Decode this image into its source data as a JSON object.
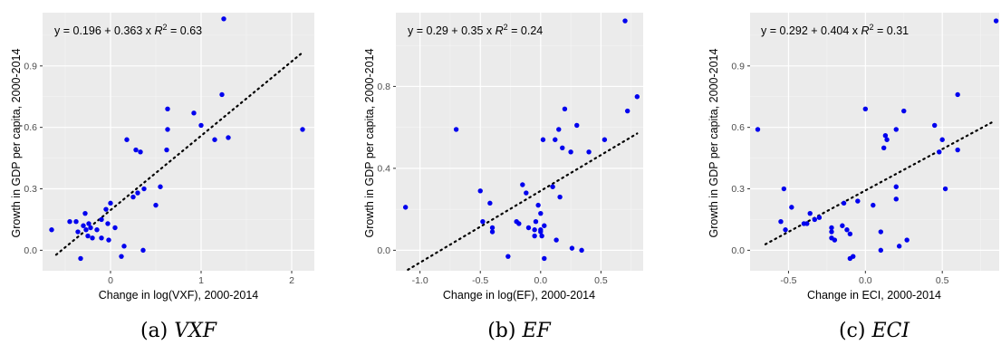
{
  "chart_data": [
    {
      "type": "scatter",
      "caption_label": "(a)",
      "caption_name": "VXF",
      "equation_pre": "y = 0.196 + 0.363 x",
      "equation_r2": "R",
      "equation_r2_exp": "2",
      "equation_r2_val": " = 0.63",
      "xlabel": "Change in log(VXF), 2000-2014",
      "ylabel": "Growth in GDP per capita, 2000-2014",
      "xlim": [
        -0.75,
        2.25
      ],
      "ylim": [
        -0.1,
        1.16
      ],
      "xticks": [
        0,
        1,
        2
      ],
      "xtick_labels": [
        "0",
        "1",
        "2"
      ],
      "yticks": [
        0.0,
        0.3,
        0.6,
        0.9
      ],
      "ytick_labels": [
        "0.0",
        "0.3",
        "0.6",
        "0.9"
      ],
      "fit": {
        "intercept": 0.196,
        "slope": 0.363,
        "x_range": [
          -0.6,
          2.1
        ]
      },
      "point_color": "#0000ee",
      "grid": true,
      "points": [
        [
          -0.65,
          0.1
        ],
        [
          -0.45,
          0.14
        ],
        [
          -0.38,
          0.14
        ],
        [
          -0.36,
          0.09
        ],
        [
          -0.33,
          -0.04
        ],
        [
          -0.3,
          0.12
        ],
        [
          -0.28,
          0.18
        ],
        [
          -0.27,
          0.1
        ],
        [
          -0.25,
          0.07
        ],
        [
          -0.24,
          0.13
        ],
        [
          -0.22,
          0.11
        ],
        [
          -0.2,
          0.06
        ],
        [
          -0.15,
          0.1
        ],
        [
          -0.1,
          0.15
        ],
        [
          -0.1,
          0.06
        ],
        [
          -0.05,
          0.2
        ],
        [
          -0.03,
          0.13
        ],
        [
          -0.02,
          0.05
        ],
        [
          0.0,
          0.23
        ],
        [
          0.05,
          0.11
        ],
        [
          0.12,
          -0.03
        ],
        [
          0.15,
          0.02
        ],
        [
          0.18,
          0.54
        ],
        [
          0.25,
          0.26
        ],
        [
          0.28,
          0.49
        ],
        [
          0.3,
          0.28
        ],
        [
          0.33,
          0.48
        ],
        [
          0.36,
          0.0
        ],
        [
          0.37,
          0.3
        ],
        [
          0.5,
          0.22
        ],
        [
          0.55,
          0.31
        ],
        [
          0.62,
          0.49
        ],
        [
          0.63,
          0.59
        ],
        [
          0.63,
          0.69
        ],
        [
          0.92,
          0.67
        ],
        [
          1.0,
          0.61
        ],
        [
          1.15,
          0.54
        ],
        [
          1.23,
          0.76
        ],
        [
          1.25,
          1.13
        ],
        [
          1.3,
          0.55
        ],
        [
          2.12,
          0.59
        ]
      ]
    },
    {
      "type": "scatter",
      "caption_label": "(b)",
      "caption_name": "EF",
      "equation_pre": "y = 0.29 + 0.35 x",
      "equation_r2": "R",
      "equation_r2_exp": "2",
      "equation_r2_val": " = 0.24",
      "xlabel": "Change in log(EF), 2000-2014",
      "ylabel": "Growth in GDP per capita, 2000-2014",
      "xlim": [
        -1.2,
        0.85
      ],
      "ylim": [
        -0.1,
        1.16
      ],
      "xticks": [
        -1.0,
        -0.5,
        0.0,
        0.5
      ],
      "xtick_labels": [
        "-1.0",
        "-0.5",
        "0.0",
        "0.5"
      ],
      "yticks": [
        0.0,
        0.4,
        0.8
      ],
      "ytick_labels": [
        "0.0",
        "0.4",
        "0.8"
      ],
      "fit": {
        "intercept": 0.29,
        "slope": 0.35,
        "x_range": [
          -1.1,
          0.8
        ]
      },
      "point_color": "#0000ee",
      "grid": true,
      "points": [
        [
          -1.12,
          0.21
        ],
        [
          -0.7,
          0.59
        ],
        [
          -0.5,
          0.29
        ],
        [
          -0.48,
          0.14
        ],
        [
          -0.42,
          0.23
        ],
        [
          -0.4,
          0.11
        ],
        [
          -0.4,
          0.09
        ],
        [
          -0.27,
          -0.03
        ],
        [
          -0.2,
          0.14
        ],
        [
          -0.18,
          0.13
        ],
        [
          -0.15,
          0.32
        ],
        [
          -0.12,
          0.28
        ],
        [
          -0.1,
          0.11
        ],
        [
          -0.05,
          0.1
        ],
        [
          -0.05,
          0.07
        ],
        [
          -0.04,
          0.14
        ],
        [
          -0.02,
          0.22
        ],
        [
          0.0,
          0.09
        ],
        [
          0.0,
          0.1
        ],
        [
          0.0,
          0.18
        ],
        [
          0.01,
          0.07
        ],
        [
          0.02,
          0.54
        ],
        [
          0.03,
          0.12
        ],
        [
          0.03,
          -0.04
        ],
        [
          0.1,
          0.31
        ],
        [
          0.12,
          0.54
        ],
        [
          0.13,
          0.05
        ],
        [
          0.15,
          0.59
        ],
        [
          0.16,
          0.26
        ],
        [
          0.18,
          0.5
        ],
        [
          0.2,
          0.69
        ],
        [
          0.25,
          0.48
        ],
        [
          0.26,
          0.01
        ],
        [
          0.3,
          0.61
        ],
        [
          0.34,
          0.0
        ],
        [
          0.4,
          0.48
        ],
        [
          0.53,
          0.54
        ],
        [
          0.7,
          1.12
        ],
        [
          0.72,
          0.68
        ],
        [
          0.8,
          0.75
        ]
      ]
    },
    {
      "type": "scatter",
      "caption_label": "(c)",
      "caption_name": "ECI",
      "equation_pre": "y = 0.292 + 0.404 x",
      "equation_r2": "R",
      "equation_r2_exp": "2",
      "equation_r2_val": " = 0.31",
      "xlabel": "Change in ECI, 2000-2014",
      "ylabel": "Growth in GDP per capita, 2000-2014",
      "xlim": [
        -0.75,
        0.87
      ],
      "ylim": [
        -0.1,
        1.16
      ],
      "xticks": [
        -0.5,
        0.0,
        0.5
      ],
      "xtick_labels": [
        "-0.5",
        "0.0",
        "0.5"
      ],
      "yticks": [
        0.0,
        0.3,
        0.6,
        0.9
      ],
      "ytick_labels": [
        "0.0",
        "0.3",
        "0.6",
        "0.9"
      ],
      "fit": {
        "intercept": 0.292,
        "slope": 0.404,
        "x_range": [
          -0.65,
          0.82
        ]
      },
      "point_color": "#0000ee",
      "grid": true,
      "points": [
        [
          -0.7,
          0.59
        ],
        [
          -0.55,
          0.14
        ],
        [
          -0.53,
          0.3
        ],
        [
          -0.52,
          0.1
        ],
        [
          -0.48,
          0.21
        ],
        [
          -0.4,
          0.13
        ],
        [
          -0.38,
          0.13
        ],
        [
          -0.36,
          0.18
        ],
        [
          -0.33,
          0.15
        ],
        [
          -0.3,
          0.16
        ],
        [
          -0.22,
          0.11
        ],
        [
          -0.22,
          0.09
        ],
        [
          -0.22,
          0.06
        ],
        [
          -0.2,
          0.05
        ],
        [
          -0.15,
          0.12
        ],
        [
          -0.14,
          0.23
        ],
        [
          -0.12,
          0.1
        ],
        [
          -0.1,
          0.08
        ],
        [
          -0.1,
          -0.04
        ],
        [
          -0.08,
          -0.03
        ],
        [
          -0.05,
          0.24
        ],
        [
          0.0,
          0.69
        ],
        [
          0.05,
          0.22
        ],
        [
          0.1,
          0.0
        ],
        [
          0.1,
          0.09
        ],
        [
          0.12,
          0.5
        ],
        [
          0.13,
          0.56
        ],
        [
          0.14,
          0.54
        ],
        [
          0.2,
          0.25
        ],
        [
          0.2,
          0.31
        ],
        [
          0.2,
          0.59
        ],
        [
          0.22,
          0.02
        ],
        [
          0.25,
          0.68
        ],
        [
          0.27,
          0.05
        ],
        [
          0.45,
          0.61
        ],
        [
          0.48,
          0.48
        ],
        [
          0.5,
          0.54
        ],
        [
          0.52,
          0.3
        ],
        [
          0.6,
          0.49
        ],
        [
          0.6,
          0.76
        ],
        [
          0.85,
          1.12
        ]
      ]
    }
  ]
}
